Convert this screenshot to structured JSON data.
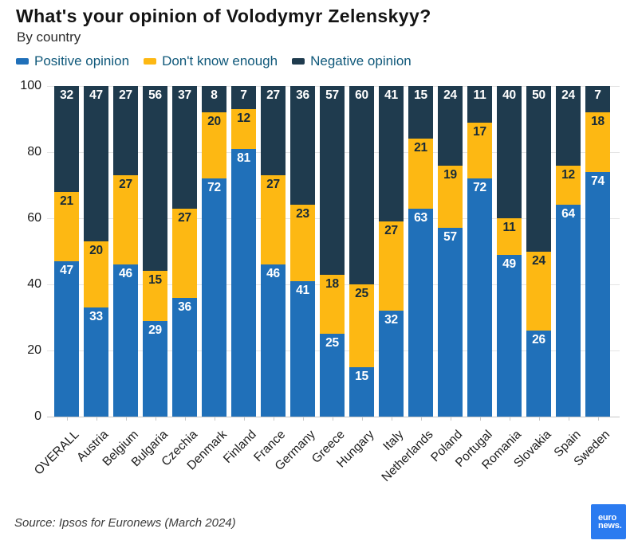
{
  "title": "What's your opinion of Volodymyr Zelenskyy?",
  "subtitle": "By country",
  "source": "Source: Ipsos for Euronews (March 2024)",
  "logo": {
    "line1": "euro",
    "line2": "news."
  },
  "colors": {
    "positive": "#2070b9",
    "dontknow": "#fdb813",
    "negative": "#1f3b4e",
    "legend_text": "#0f587a",
    "gridline": "#e4e4e4",
    "axis": "#c6c6c6",
    "logo_blue": "#2b7bf0"
  },
  "legend": [
    {
      "label": "Positive opinion",
      "color": "#2070b9"
    },
    {
      "label": "Don't know enough",
      "color": "#fdb813"
    },
    {
      "label": "Negative opinion",
      "color": "#1f3b4e"
    }
  ],
  "y_axis": {
    "ticks": [
      0,
      20,
      40,
      60,
      80,
      100
    ],
    "max": 100
  },
  "chart_data": {
    "type": "bar",
    "stacked": true,
    "title": "What's your opinion of Volodymyr Zelenskyy?",
    "subtitle": "By country",
    "ylim": [
      0,
      100
    ],
    "categories": [
      "OVERALL",
      "Austria",
      "Belgium",
      "Bulgaria",
      "Czechia",
      "Denmark",
      "Finland",
      "France",
      "Germany",
      "Greece",
      "Hungary",
      "Italy",
      "Netherlands",
      "Poland",
      "Portugal",
      "Romania",
      "Slovakia",
      "Spain",
      "Sweden"
    ],
    "series": [
      {
        "name": "Positive opinion",
        "values": [
          47,
          33,
          46,
          29,
          36,
          72,
          81,
          46,
          41,
          25,
          15,
          32,
          63,
          57,
          72,
          49,
          26,
          64,
          74
        ]
      },
      {
        "name": "Don't know enough",
        "values": [
          21,
          20,
          27,
          15,
          27,
          20,
          12,
          27,
          23,
          18,
          25,
          27,
          21,
          19,
          17,
          11,
          24,
          12,
          18
        ]
      },
      {
        "name": "Negative opinion",
        "values": [
          32,
          47,
          27,
          56,
          37,
          8,
          7,
          27,
          36,
          57,
          60,
          41,
          15,
          24,
          11,
          40,
          50,
          24,
          7
        ]
      }
    ]
  }
}
